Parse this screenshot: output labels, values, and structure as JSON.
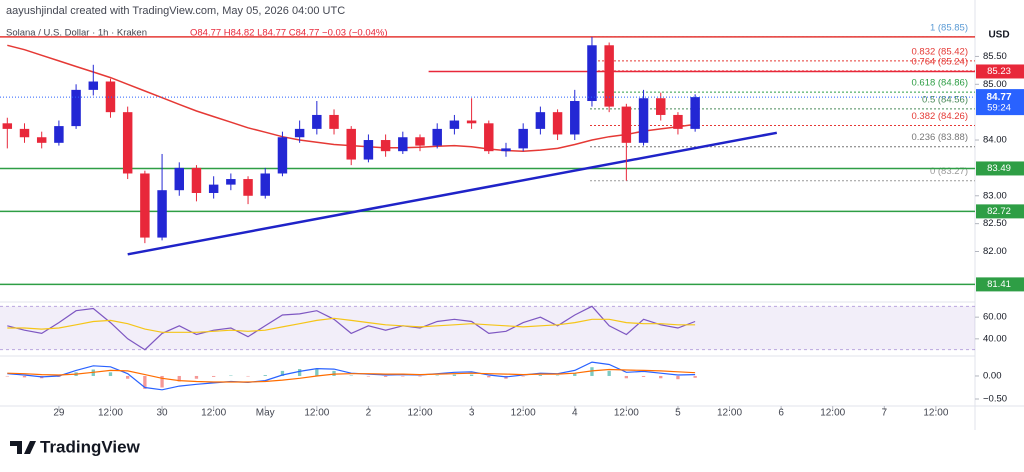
{
  "header": {
    "attribution": "aayushjindal created with TradingView.com, May 05, 2026 04:00 UTC",
    "symbol": "Solana / U.S. Dollar · 1h · Kraken",
    "ohlc": "O84.77 H84.82 L84.77 C84.77 −0.03 (−0.04%)"
  },
  "chart_data": [
    {
      "type": "candlestick",
      "currency": "USD",
      "up_color": "#2327d4",
      "down_color": "#e8283a",
      "x": [
        -12,
        -8,
        -4,
        0,
        4,
        8,
        12,
        16,
        20,
        24,
        28,
        32,
        36,
        40,
        44,
        48,
        52,
        56,
        60,
        64,
        68,
        72,
        76,
        80,
        84,
        88,
        92,
        96,
        100,
        104,
        108,
        112,
        116,
        120,
        124,
        128,
        132,
        136,
        140,
        144,
        148
      ],
      "open": [
        84.3,
        84.2,
        84.05,
        83.95,
        84.25,
        84.9,
        85.05,
        84.5,
        83.4,
        82.25,
        83.1,
        83.5,
        83.05,
        83.2,
        83.3,
        83.0,
        83.4,
        84.05,
        84.2,
        84.45,
        84.2,
        83.65,
        84.0,
        83.8,
        84.05,
        83.9,
        84.2,
        84.35,
        84.3,
        83.8,
        83.85,
        84.2,
        84.5,
        84.1,
        84.7,
        85.7,
        84.6,
        83.95,
        84.75,
        84.45,
        84.2
      ],
      "high": [
        84.4,
        84.3,
        84.15,
        84.35,
        85.0,
        85.35,
        85.1,
        84.6,
        83.45,
        83.75,
        83.6,
        83.55,
        83.35,
        83.4,
        83.35,
        83.5,
        84.15,
        84.35,
        84.7,
        84.55,
        84.25,
        84.1,
        84.1,
        84.15,
        84.1,
        84.3,
        84.45,
        84.75,
        84.35,
        83.95,
        84.3,
        84.6,
        84.55,
        84.9,
        85.85,
        85.75,
        84.65,
        84.9,
        84.85,
        84.5,
        84.82
      ],
      "low": [
        83.85,
        83.95,
        83.85,
        83.9,
        84.2,
        84.8,
        84.4,
        83.3,
        82.15,
        82.2,
        83.0,
        82.9,
        82.95,
        83.1,
        82.85,
        82.95,
        83.35,
        83.95,
        84.1,
        84.1,
        83.55,
        83.6,
        83.7,
        83.75,
        83.8,
        83.85,
        84.1,
        84.2,
        83.75,
        83.7,
        83.8,
        84.1,
        84.0,
        84.0,
        84.6,
        84.5,
        83.27,
        83.9,
        84.35,
        84.1,
        84.15
      ],
      "close": [
        84.2,
        84.05,
        83.95,
        84.25,
        84.9,
        85.05,
        84.5,
        83.4,
        82.25,
        83.1,
        83.5,
        83.05,
        83.2,
        83.3,
        83.0,
        83.4,
        84.05,
        84.2,
        84.45,
        84.2,
        83.65,
        84.0,
        83.8,
        84.05,
        83.9,
        84.2,
        84.35,
        84.3,
        83.8,
        83.85,
        84.2,
        84.5,
        84.1,
        84.7,
        85.7,
        84.6,
        83.95,
        84.75,
        84.45,
        84.2,
        84.77
      ],
      "moving_average": {
        "color": "#e53935",
        "values": [
          85.7,
          85.62,
          85.52,
          85.42,
          85.32,
          85.22,
          85.12,
          85.0,
          84.88,
          84.76,
          84.64,
          84.52,
          84.42,
          84.32,
          84.22,
          84.14,
          84.06,
          84.0,
          83.96,
          83.92,
          83.9,
          83.88,
          83.86,
          83.86,
          83.87,
          83.89,
          83.9,
          83.88,
          83.84,
          83.81,
          83.8,
          83.82,
          83.85,
          83.92,
          84.0,
          84.06,
          84.1,
          84.16,
          84.2,
          84.24,
          84.28
        ]
      },
      "trendline": {
        "color": "#1f23c8",
        "x": [
          16,
          167
        ],
        "y": [
          81.95,
          84.13
        ]
      },
      "levels": [
        {
          "value": 85.85,
          "color": "#e53935",
          "from": -14
        },
        {
          "value": 85.23,
          "color": "#e8283a",
          "from": 86,
          "axis_label": true
        },
        {
          "value": 83.49,
          "color": "#2e9e45",
          "from": -14,
          "axis_label": true
        },
        {
          "value": 82.72,
          "color": "#2e9e45",
          "from": -14,
          "axis_label": true
        },
        {
          "value": 81.41,
          "color": "#2e9e45",
          "from": -14,
          "axis_label": true
        }
      ],
      "last": {
        "value": 84.77,
        "countdown": "59:24",
        "color": "#2962ff"
      },
      "fib": [
        {
          "label": "1 (85.85)",
          "price": 85.85,
          "color": "#5b9bd5"
        },
        {
          "label": "0.832 (85.42)",
          "price": 85.42,
          "color": "#e53935"
        },
        {
          "label": "0.764 (85.24)",
          "price": 85.24,
          "color": "#e53935"
        },
        {
          "label": "0.618 (84.86)",
          "price": 84.86,
          "color": "#2e9e45"
        },
        {
          "label": "0.5 (84.56)",
          "price": 84.56,
          "color": "#4a8a5a"
        },
        {
          "label": "0.382 (84.26)",
          "price": 84.26,
          "color": "#e53935"
        },
        {
          "label": "0.236 (83.88)",
          "price": 83.88,
          "color": "#777777"
        },
        {
          "label": "0 (83.27)",
          "price": 83.27,
          "color": "#999999"
        }
      ],
      "xlim": [
        -13.7,
        213.1
      ],
      "xticks": [
        {
          "value": 0,
          "label": "29"
        },
        {
          "value": 12,
          "label": "12:00"
        },
        {
          "value": 24,
          "label": "30"
        },
        {
          "value": 36,
          "label": "12:00"
        },
        {
          "value": 48,
          "label": "May"
        },
        {
          "value": 60,
          "label": "12:00"
        },
        {
          "value": 72,
          "label": "2"
        },
        {
          "value": 84,
          "label": "12:00"
        },
        {
          "value": 96,
          "label": "3"
        },
        {
          "value": 108,
          "label": "12:00"
        },
        {
          "value": 120,
          "label": "4"
        },
        {
          "value": 132,
          "label": "12:00"
        },
        {
          "value": 144,
          "label": "5"
        },
        {
          "value": 156,
          "label": "12:00"
        },
        {
          "value": 168,
          "label": "6"
        },
        {
          "value": 180,
          "label": "12:00"
        },
        {
          "value": 192,
          "label": "7"
        },
        {
          "value": 204,
          "label": "12:00"
        }
      ],
      "ylim": [
        81.13,
        86.01
      ],
      "yticks": [
        {
          "value": 82,
          "label": "82.00"
        },
        {
          "value": 82.5,
          "label": "82.50"
        },
        {
          "value": 83,
          "label": "83.00"
        },
        {
          "value": 84,
          "label": "84.00"
        },
        {
          "value": 85,
          "label": "85.00"
        },
        {
          "value": 85.5,
          "label": "85.50"
        }
      ]
    },
    {
      "type": "line",
      "band": [
        30,
        70
      ],
      "band_color": "#7e57c2",
      "series": [
        {
          "color": "#7e57c2",
          "values": [
            52,
            48,
            45,
            55,
            66,
            68,
            55,
            40,
            30,
            45,
            52,
            44,
            48,
            50,
            42,
            52,
            62,
            63,
            66,
            58,
            45,
            52,
            48,
            52,
            50,
            56,
            58,
            56,
            45,
            47,
            55,
            60,
            52,
            62,
            70,
            52,
            44,
            58,
            53,
            50,
            56
          ]
        },
        {
          "color": "#f5c518",
          "values": [
            50,
            50,
            49,
            50,
            53,
            56,
            57,
            54,
            49,
            46,
            46,
            46,
            47,
            48,
            47,
            48,
            51,
            54,
            57,
            59,
            57,
            55,
            53,
            52,
            51,
            52,
            53,
            54,
            53,
            52,
            51,
            52,
            53,
            55,
            58,
            58,
            55,
            54,
            54,
            53,
            53
          ]
        }
      ],
      "ylim": [
        26,
        74
      ],
      "yticks": [
        {
          "value": 40,
          "label": "40.00"
        },
        {
          "value": 60,
          "label": "60.00"
        }
      ]
    },
    {
      "type": "macd",
      "series": [
        {
          "color": "#2962ff",
          "values": [
            0.05,
            0.02,
            -0.02,
            0.0,
            0.12,
            0.22,
            0.2,
            0.05,
            -0.25,
            -0.3,
            -0.22,
            -0.18,
            -0.15,
            -0.12,
            -0.14,
            -0.1,
            0.02,
            0.1,
            0.16,
            0.15,
            0.06,
            0.04,
            0.02,
            0.03,
            0.02,
            0.05,
            0.08,
            0.09,
            0.02,
            -0.02,
            0.02,
            0.06,
            0.05,
            0.12,
            0.3,
            0.25,
            0.08,
            0.1,
            0.06,
            0.02,
            0.03
          ]
        },
        {
          "color": "#ff6d00",
          "values": [
            0.06,
            0.05,
            0.03,
            0.02,
            0.04,
            0.08,
            0.12,
            0.11,
            0.03,
            -0.05,
            -0.1,
            -0.12,
            -0.13,
            -0.13,
            -0.13,
            -0.12,
            -0.09,
            -0.05,
            0.0,
            0.04,
            0.05,
            0.05,
            0.04,
            0.04,
            0.03,
            0.04,
            0.05,
            0.06,
            0.05,
            0.04,
            0.03,
            0.04,
            0.04,
            0.06,
            0.11,
            0.14,
            0.13,
            0.12,
            0.11,
            0.09,
            0.07
          ]
        }
      ],
      "histogram": {
        "up_color": "#26a69a",
        "down_color": "#ef5350",
        "values": [
          -0.01,
          -0.03,
          -0.05,
          -0.02,
          0.08,
          0.14,
          0.08,
          -0.06,
          -0.28,
          -0.25,
          -0.12,
          -0.06,
          -0.02,
          0.01,
          -0.01,
          0.02,
          0.11,
          0.15,
          0.16,
          0.11,
          0.01,
          -0.01,
          -0.02,
          -0.01,
          -0.01,
          0.01,
          0.03,
          0.03,
          -0.03,
          -0.06,
          -0.01,
          0.02,
          0.01,
          0.06,
          0.19,
          0.11,
          -0.05,
          -0.02,
          -0.05,
          -0.07,
          -0.04
        ]
      },
      "ylim": [
        -0.63,
        0.39
      ],
      "yticks": [
        {
          "value": -0.5,
          "label": "−0.50"
        },
        {
          "value": 0,
          "label": "0.00"
        }
      ]
    }
  ],
  "footer": {
    "brand": "TradingView"
  }
}
